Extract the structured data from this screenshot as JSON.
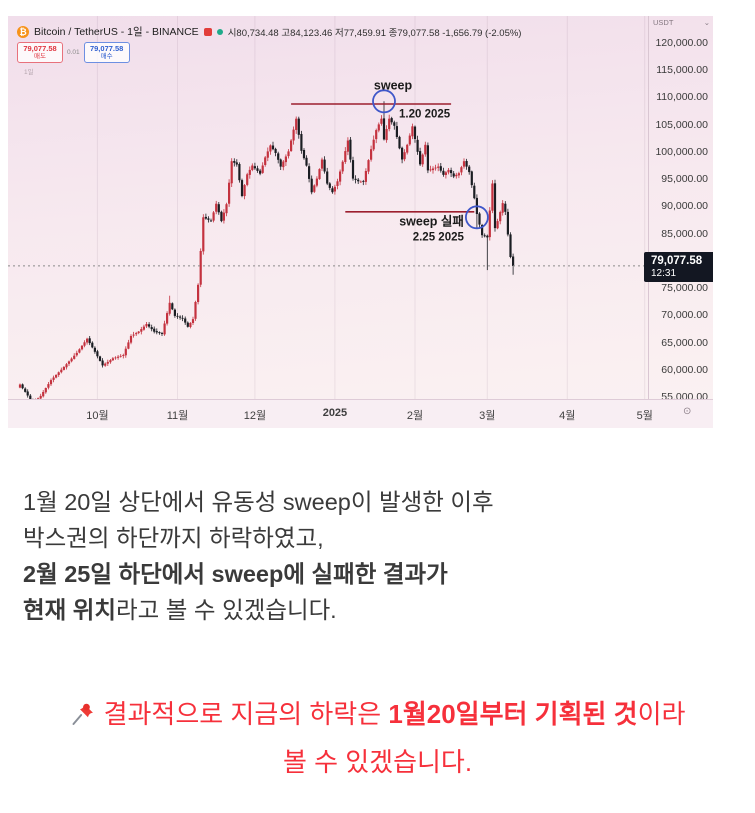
{
  "chart": {
    "header": {
      "bitcoin_glyph": "₿",
      "title": "Bitcoin / TetherUS - 1일 - BINANCE",
      "ohlc": "시80,734.48  고84,123.46  저77,459.91  종79,077.58  -1,656.79 (-2.05%)"
    },
    "trade_widget": {
      "sell_price": "79,077.58",
      "sell_label": "매도",
      "spread": "0.01",
      "buy_price": "79,077.58",
      "buy_label": "매수",
      "interval_hint": "1일"
    },
    "y_axis": {
      "unit": "USDT",
      "caret": "⌄",
      "min": 55000,
      "max": 120000,
      "step": 5000
    },
    "price_tag": {
      "price": "79,077.58",
      "countdown": "12:31"
    },
    "scale_icon": "⊙",
    "colors": {
      "candle_up": "#c4323f",
      "candle_down": "#1a1d22",
      "annotation_line": "#9c1f2e",
      "annotation_text": "#1b1b1b",
      "circle": "#3f57c9",
      "price_line": "#8a8a8a",
      "tag_bg": "#131722",
      "grid": "rgba(70,30,70,0.08)"
    }
  },
  "chart_data": {
    "type": "candlestick",
    "title": "Bitcoin / TetherUS - 1일 - BINANCE",
    "exchange": "BINANCE",
    "interval": "1일",
    "y_unit": "USDT",
    "y_range": [
      55000,
      120000
    ],
    "current_price": 79077.58,
    "x_unit": "days_from_2024-09-01",
    "x_labels": [
      {
        "text": "10월",
        "day": 30
      },
      {
        "text": "11월",
        "day": 61
      },
      {
        "text": "12월",
        "day": 91
      },
      {
        "text": "2025",
        "day": 122,
        "bold": true
      },
      {
        "text": "2월",
        "day": 153
      },
      {
        "text": "3월",
        "day": 181
      },
      {
        "text": "4월",
        "day": 212
      },
      {
        "text": "5월",
        "day": 242
      }
    ],
    "month_grid_days": [
      30,
      61,
      91,
      122,
      153,
      181,
      212,
      242
    ],
    "anchors_close": [
      [
        0,
        57300
      ],
      [
        5,
        53900
      ],
      [
        8,
        55200
      ],
      [
        12,
        58100
      ],
      [
        17,
        60500
      ],
      [
        22,
        63100
      ],
      [
        26,
        65700
      ],
      [
        29,
        63300
      ],
      [
        32,
        60800
      ],
      [
        36,
        62100
      ],
      [
        40,
        62700
      ],
      [
        43,
        66200
      ],
      [
        46,
        67000
      ],
      [
        49,
        68400
      ],
      [
        52,
        67000
      ],
      [
        55,
        66600
      ],
      [
        58,
        72300
      ],
      [
        60,
        69900
      ],
      [
        63,
        69400
      ],
      [
        65,
        67900
      ],
      [
        67,
        69300
      ],
      [
        69,
        75600
      ],
      [
        71,
        88000
      ],
      [
        74,
        87300
      ],
      [
        76,
        90500
      ],
      [
        78,
        87300
      ],
      [
        80,
        90400
      ],
      [
        82,
        98300
      ],
      [
        84,
        97700
      ],
      [
        86,
        91900
      ],
      [
        88,
        95900
      ],
      [
        90,
        97500
      ],
      [
        93,
        96000
      ],
      [
        95,
        99000
      ],
      [
        97,
        101200
      ],
      [
        99,
        99800
      ],
      [
        101,
        97300
      ],
      [
        104,
        100100
      ],
      [
        106,
        104100
      ],
      [
        107,
        106100
      ],
      [
        109,
        100200
      ],
      [
        111,
        97500
      ],
      [
        113,
        92600
      ],
      [
        115,
        95100
      ],
      [
        117,
        98600
      ],
      [
        119,
        94200
      ],
      [
        121,
        92600
      ],
      [
        123,
        94600
      ],
      [
        125,
        98200
      ],
      [
        127,
        102100
      ],
      [
        129,
        95100
      ],
      [
        131,
        94600
      ],
      [
        133,
        94500
      ],
      [
        136,
        100500
      ],
      [
        138,
        104000
      ],
      [
        140,
        106100
      ],
      [
        141,
        102300
      ],
      [
        143,
        106100
      ],
      [
        145,
        104800
      ],
      [
        148,
        98600
      ],
      [
        150,
        101300
      ],
      [
        152,
        104700
      ],
      [
        155,
        97700
      ],
      [
        157,
        101300
      ],
      [
        158,
        96600
      ],
      [
        162,
        97300
      ],
      [
        164,
        95800
      ],
      [
        166,
        96700
      ],
      [
        168,
        95500
      ],
      [
        170,
        96100
      ],
      [
        172,
        98300
      ],
      [
        174,
        96300
      ],
      [
        176,
        91500
      ],
      [
        177,
        88600
      ],
      [
        179,
        84700
      ],
      [
        181,
        84300
      ],
      [
        183,
        94200
      ],
      [
        184,
        86000
      ],
      [
        185,
        87300
      ],
      [
        187,
        90600
      ],
      [
        188,
        89000
      ],
      [
        190,
        80700
      ],
      [
        191,
        79077.58
      ]
    ],
    "wick_overrides": {
      "58": {
        "high": 73600
      },
      "141": {
        "high": 109300
      },
      "177": {
        "low": 86000
      },
      "181": {
        "low": 78300
      },
      "191": {
        "low": 77459.91
      }
    },
    "annotations": [
      {
        "type": "hline",
        "price": 108800,
        "from_day": 105,
        "to_day": 167
      },
      {
        "type": "hline",
        "price": 89000,
        "from_day": 126,
        "to_day": 176
      },
      {
        "type": "circle",
        "day": 141,
        "price": 109300,
        "label": "sweep",
        "date": "1.20 2025",
        "side": "right"
      },
      {
        "type": "circle",
        "day": 177,
        "price": 88000,
        "label": "sweep 실패",
        "date": "2.25 2025",
        "side": "left"
      },
      {
        "type": "price_line",
        "price": 79077.58
      }
    ]
  },
  "commentary": {
    "line1": "1월 20일 상단에서 유동성 sweep이 발생한 이후",
    "line2": "박스권의 하단까지 하락하였고,",
    "line3": "2월 25일 하단에서 sweep에 실패한 결과가",
    "line4_bold": "현재 위치",
    "line4_rest": "라고 볼 수 있겠습니다."
  },
  "highlight": {
    "color": "#f6303b",
    "line1_pre": "결과적으로 지금의 하락은 ",
    "line1_bold": "1월20일부터 기획된 것",
    "line1_post": "이라",
    "line2": "볼 수 있겠습니다."
  }
}
